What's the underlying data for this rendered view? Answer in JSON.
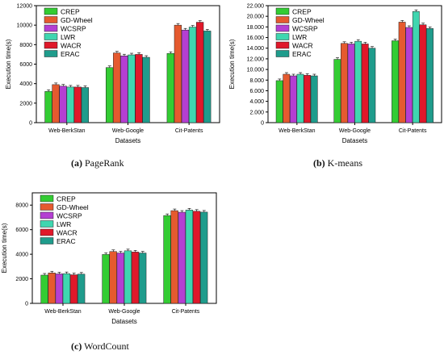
{
  "colors": {
    "series": [
      "#33cc33",
      "#e55a2f",
      "#b43fd2",
      "#3fd6b0",
      "#e0182a",
      "#1f9c8c"
    ]
  },
  "captions": [
    {
      "letter": "(a)",
      "text": "PageRank"
    },
    {
      "letter": "(b)",
      "text": "K-means"
    },
    {
      "letter": "(c)",
      "text": "WordCount"
    }
  ],
  "chart_data": [
    {
      "type": "bar",
      "xlabel": "Datasets",
      "ylabel": "Execution time(s)",
      "categories": [
        "Web-BerkStan",
        "Web-Google",
        "Cit-Patents"
      ],
      "ylim": [
        0,
        12000
      ],
      "yticks": [
        0,
        2000,
        4000,
        6000,
        8000,
        10000,
        12000
      ],
      "ytick_labels": [
        "0",
        "2000",
        "4000",
        "6000",
        "8000",
        "10000",
        "12000"
      ],
      "legend_position": "top-left",
      "series": [
        {
          "name": "CREP",
          "values": [
            3200,
            5650,
            7100
          ]
        },
        {
          "name": "GD-Wheel",
          "values": [
            3900,
            7150,
            10000
          ]
        },
        {
          "name": "WCSRP",
          "values": [
            3750,
            6850,
            9500
          ]
        },
        {
          "name": "LWR",
          "values": [
            3650,
            6950,
            9800
          ]
        },
        {
          "name": "WACR",
          "values": [
            3650,
            7000,
            10300
          ]
        },
        {
          "name": "ERAC",
          "values": [
            3600,
            6700,
            9400
          ]
        }
      ]
    },
    {
      "type": "bar",
      "xlabel": "Datasets",
      "ylabel": "Execution time(s)",
      "categories": [
        "Web-BerkStan",
        "Web-Google",
        "Cit-Patents"
      ],
      "ylim": [
        0,
        22000
      ],
      "yticks": [
        0,
        2000,
        4000,
        6000,
        8000,
        10000,
        12000,
        14000,
        16000,
        18000,
        20000,
        22000
      ],
      "ytick_labels": [
        "0",
        "2.000",
        "4.000",
        "6.000",
        "8.000",
        "10.000",
        "12.000",
        "14.000",
        "16.000",
        "18.000",
        "20.000",
        "22.000"
      ],
      "legend_position": "top-left",
      "series": [
        {
          "name": "CREP",
          "values": [
            7900,
            11900,
            15400
          ]
        },
        {
          "name": "GD-Wheel",
          "values": [
            9100,
            14900,
            18900
          ]
        },
        {
          "name": "WCSRP",
          "values": [
            8800,
            14800,
            17900
          ]
        },
        {
          "name": "LWR",
          "values": [
            9100,
            15300,
            20900
          ]
        },
        {
          "name": "WACR",
          "values": [
            8900,
            14800,
            18400
          ]
        },
        {
          "name": "ERAC",
          "values": [
            8800,
            14000,
            17700
          ]
        }
      ]
    },
    {
      "type": "bar",
      "xlabel": "Datasets",
      "ylabel": "Execution time(s)",
      "categories": [
        "Web-BerkStan",
        "Web-Google",
        "Cit-Patents"
      ],
      "ylim": [
        0,
        9000
      ],
      "yticks": [
        0,
        2000,
        4000,
        6000,
        8000
      ],
      "ytick_labels": [
        "0",
        "2000",
        "4000",
        "6000",
        "8000"
      ],
      "legend_position": "top-left",
      "series": [
        {
          "name": "CREP",
          "values": [
            2300,
            3980,
            7150
          ]
        },
        {
          "name": "GD-Wheel",
          "values": [
            2480,
            4220,
            7550
          ]
        },
        {
          "name": "WCSRP",
          "values": [
            2400,
            4100,
            7420
          ]
        },
        {
          "name": "LWR",
          "values": [
            2420,
            4280,
            7600
          ]
        },
        {
          "name": "WACR",
          "values": [
            2330,
            4180,
            7500
          ]
        },
        {
          "name": "ERAC",
          "values": [
            2380,
            4100,
            7430
          ]
        }
      ]
    }
  ]
}
